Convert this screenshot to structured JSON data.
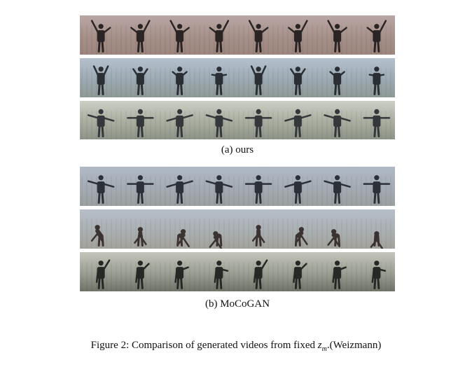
{
  "figure": {
    "subfigure_a": {
      "caption": "(a) ours",
      "strips": [
        {
          "figures": 8,
          "pose": "arms-up-wave",
          "colors": {
            "sky": "#b9a7a5",
            "ground": "#9b857d",
            "band": "#a69089",
            "figure": "#2a2424"
          }
        },
        {
          "figures": 8,
          "pose": "arms-raise",
          "colors": {
            "sky": "#b4c0cd",
            "ground": "#8f9a96",
            "band": "#9da9b2",
            "figure": "#2a2e35"
          }
        },
        {
          "figures": 8,
          "pose": "arms-side",
          "colors": {
            "sky": "#cbcfc4",
            "ground": "#8e9488",
            "band": "#a9ada0",
            "figure": "#35383a"
          }
        }
      ]
    },
    "subfigure_b": {
      "caption": "(b) MoCoGAN",
      "strips": [
        {
          "figures": 8,
          "pose": "arms-side",
          "colors": {
            "sky": "#b0b9c7",
            "ground": "#9aa09f",
            "band": "#a4abb3",
            "figure": "#2c3038"
          }
        },
        {
          "figures": 8,
          "pose": "bend",
          "colors": {
            "sky": "#b6bec8",
            "ground": "#a3a29a",
            "band": "#aab0b2",
            "figure": "#3a3332"
          }
        },
        {
          "figures": 8,
          "pose": "one-arm-wave",
          "colors": {
            "sky": "#c4c6bc",
            "ground": "#6f7468",
            "band": "#9a9d92",
            "figure": "#262826"
          }
        }
      ]
    },
    "caption": {
      "prefix": "Figure 2:  Comparison of generated videos from fixed ",
      "var": "z",
      "sub": "m",
      "suffix": ".(Weizmann)"
    }
  }
}
